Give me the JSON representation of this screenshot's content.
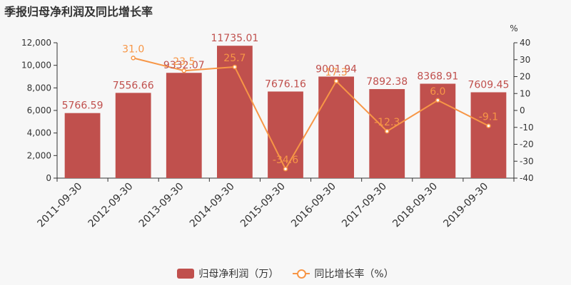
{
  "title": "季报归母净利润及同比增长率",
  "chart_data": {
    "type": "bar+line",
    "categories": [
      "2011-09-30",
      "2012-09-30",
      "2013-09-30",
      "2014-09-30",
      "2015-09-30",
      "2016-09-30",
      "2017-09-30",
      "2018-09-30",
      "2019-09-30"
    ],
    "series": [
      {
        "name": "归母净利润（万）",
        "type": "bar",
        "axis": "left",
        "values": [
          5766.59,
          7556.66,
          9332.07,
          11735.01,
          7676.16,
          9001.94,
          7892.38,
          8368.91,
          7609.45
        ],
        "labels": [
          "5766.59",
          "7556.66",
          "9332.07",
          "11735.01",
          "7676.16",
          "9001.94",
          "7892.38",
          "8368.91",
          "7609.45"
        ]
      },
      {
        "name": "同比增长率（%）",
        "type": "line",
        "axis": "right",
        "values": [
          null,
          31.0,
          23.5,
          25.7,
          -34.6,
          17.3,
          -12.3,
          6.0,
          -9.1
        ],
        "labels": [
          "",
          "31.0",
          "23.5",
          "25.7",
          "-34.6",
          "17.3",
          "-12.3",
          "6.0",
          "-9.1"
        ]
      }
    ],
    "y_left": {
      "range": [
        0,
        12000
      ],
      "ticks": [
        "0",
        "2,000",
        "4,000",
        "6,000",
        "8,000",
        "10,000",
        "12,000"
      ],
      "tick_values": [
        0,
        2000,
        4000,
        6000,
        8000,
        10000,
        12000
      ]
    },
    "y_right": {
      "unit": "%",
      "range": [
        -40,
        40
      ],
      "ticks": [
        "-40",
        "-30",
        "-20",
        "-10",
        "0",
        "10",
        "20",
        "30",
        "40"
      ],
      "tick_values": [
        -40,
        -30,
        -20,
        -10,
        0,
        10,
        20,
        30,
        40
      ]
    },
    "legend": {
      "position": "bottom-center",
      "bar_label": "归母净利润（万）",
      "line_label": "同比增长率（%）"
    },
    "grid": false,
    "colors": {
      "bar": "#c0504d",
      "line": "#f79646",
      "bar_label": "#c0504d",
      "line_label": "#f79646",
      "axis": "#333333"
    }
  }
}
